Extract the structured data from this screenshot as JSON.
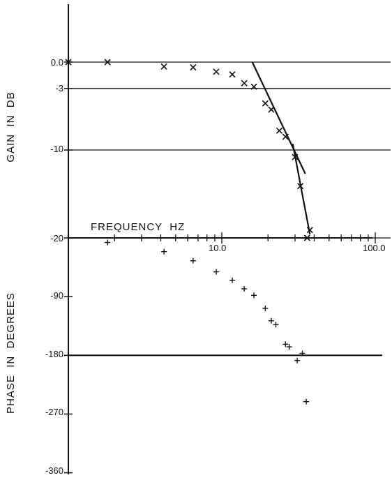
{
  "chart_data": [
    {
      "type": "scatter",
      "title": "",
      "xlabel": "FREQUENCY  HZ",
      "ylabel": "GAIN  IN  DB",
      "x_scale": "log",
      "xlim": [
        1,
        100
      ],
      "ylim": [
        -20,
        0
      ],
      "grid": "horizontal lines at labeled ticks",
      "y_tick_labels": [
        "0.0",
        "-3",
        "-10",
        "-20"
      ],
      "y_ticks": [
        0,
        -3,
        -10,
        -20
      ],
      "x_tick_labels": [
        "10.0",
        "100.0"
      ],
      "x_ticks": [
        10,
        100
      ],
      "series": [
        {
          "marker": "x",
          "points": [
            {
              "x": 1.0,
              "y": 0.0
            },
            {
              "x": 1.8,
              "y": 0.0
            },
            {
              "x": 4.2,
              "y": -0.5
            },
            {
              "x": 6.5,
              "y": -0.6
            },
            {
              "x": 9.2,
              "y": -1.1
            },
            {
              "x": 11.7,
              "y": -1.4
            },
            {
              "x": 14.0,
              "y": -2.4
            },
            {
              "x": 16.2,
              "y": -2.8
            },
            {
              "x": 19.2,
              "y": -4.7
            },
            {
              "x": 21.0,
              "y": -5.4
            },
            {
              "x": 23.7,
              "y": -7.8
            },
            {
              "x": 26.0,
              "y": -8.5
            },
            {
              "x": 30.0,
              "y": -10.8
            },
            {
              "x": 32.5,
              "y": -14.1
            },
            {
              "x": 36.0,
              "y": -20.0
            },
            {
              "x": 37.5,
              "y": -19.1
            }
          ]
        }
      ],
      "asymptote_lines": [
        {
          "points": [
            {
              "x": 15.8,
              "y": 0.0
            },
            {
              "x": 35.0,
              "y": -12.7
            }
          ]
        },
        {
          "points": [
            {
              "x": 29.0,
              "y": -9.3
            },
            {
              "x": 37.5,
              "y": -19.6
            }
          ]
        }
      ],
      "color": "#111111"
    },
    {
      "type": "scatter",
      "title": "",
      "xlabel": "FREQUENCY  HZ",
      "ylabel": "PHASE  IN  DEGREES",
      "x_scale": "log",
      "xlim": [
        1,
        100
      ],
      "ylim": [
        -360,
        0
      ],
      "y_tick_labels": [
        "-90",
        "-180",
        "-270",
        "-360"
      ],
      "y_ticks": [
        -90,
        -180,
        -270,
        -360
      ],
      "reference_lines": [
        -180
      ],
      "series": [
        {
          "marker": "+",
          "points": [
            {
              "x": 1.8,
              "y": -7
            },
            {
              "x": 4.2,
              "y": -21
            },
            {
              "x": 6.5,
              "y": -35
            },
            {
              "x": 9.2,
              "y": -52
            },
            {
              "x": 11.7,
              "y": -65
            },
            {
              "x": 14.0,
              "y": -78
            },
            {
              "x": 16.2,
              "y": -88
            },
            {
              "x": 19.2,
              "y": -108
            },
            {
              "x": 21.0,
              "y": -127
            },
            {
              "x": 22.5,
              "y": -133
            },
            {
              "x": 26.0,
              "y": -163
            },
            {
              "x": 27.5,
              "y": -167
            },
            {
              "x": 31.0,
              "y": -188
            },
            {
              "x": 33.5,
              "y": -177
            },
            {
              "x": 35.5,
              "y": -251
            }
          ]
        }
      ],
      "color": "#111111"
    }
  ]
}
